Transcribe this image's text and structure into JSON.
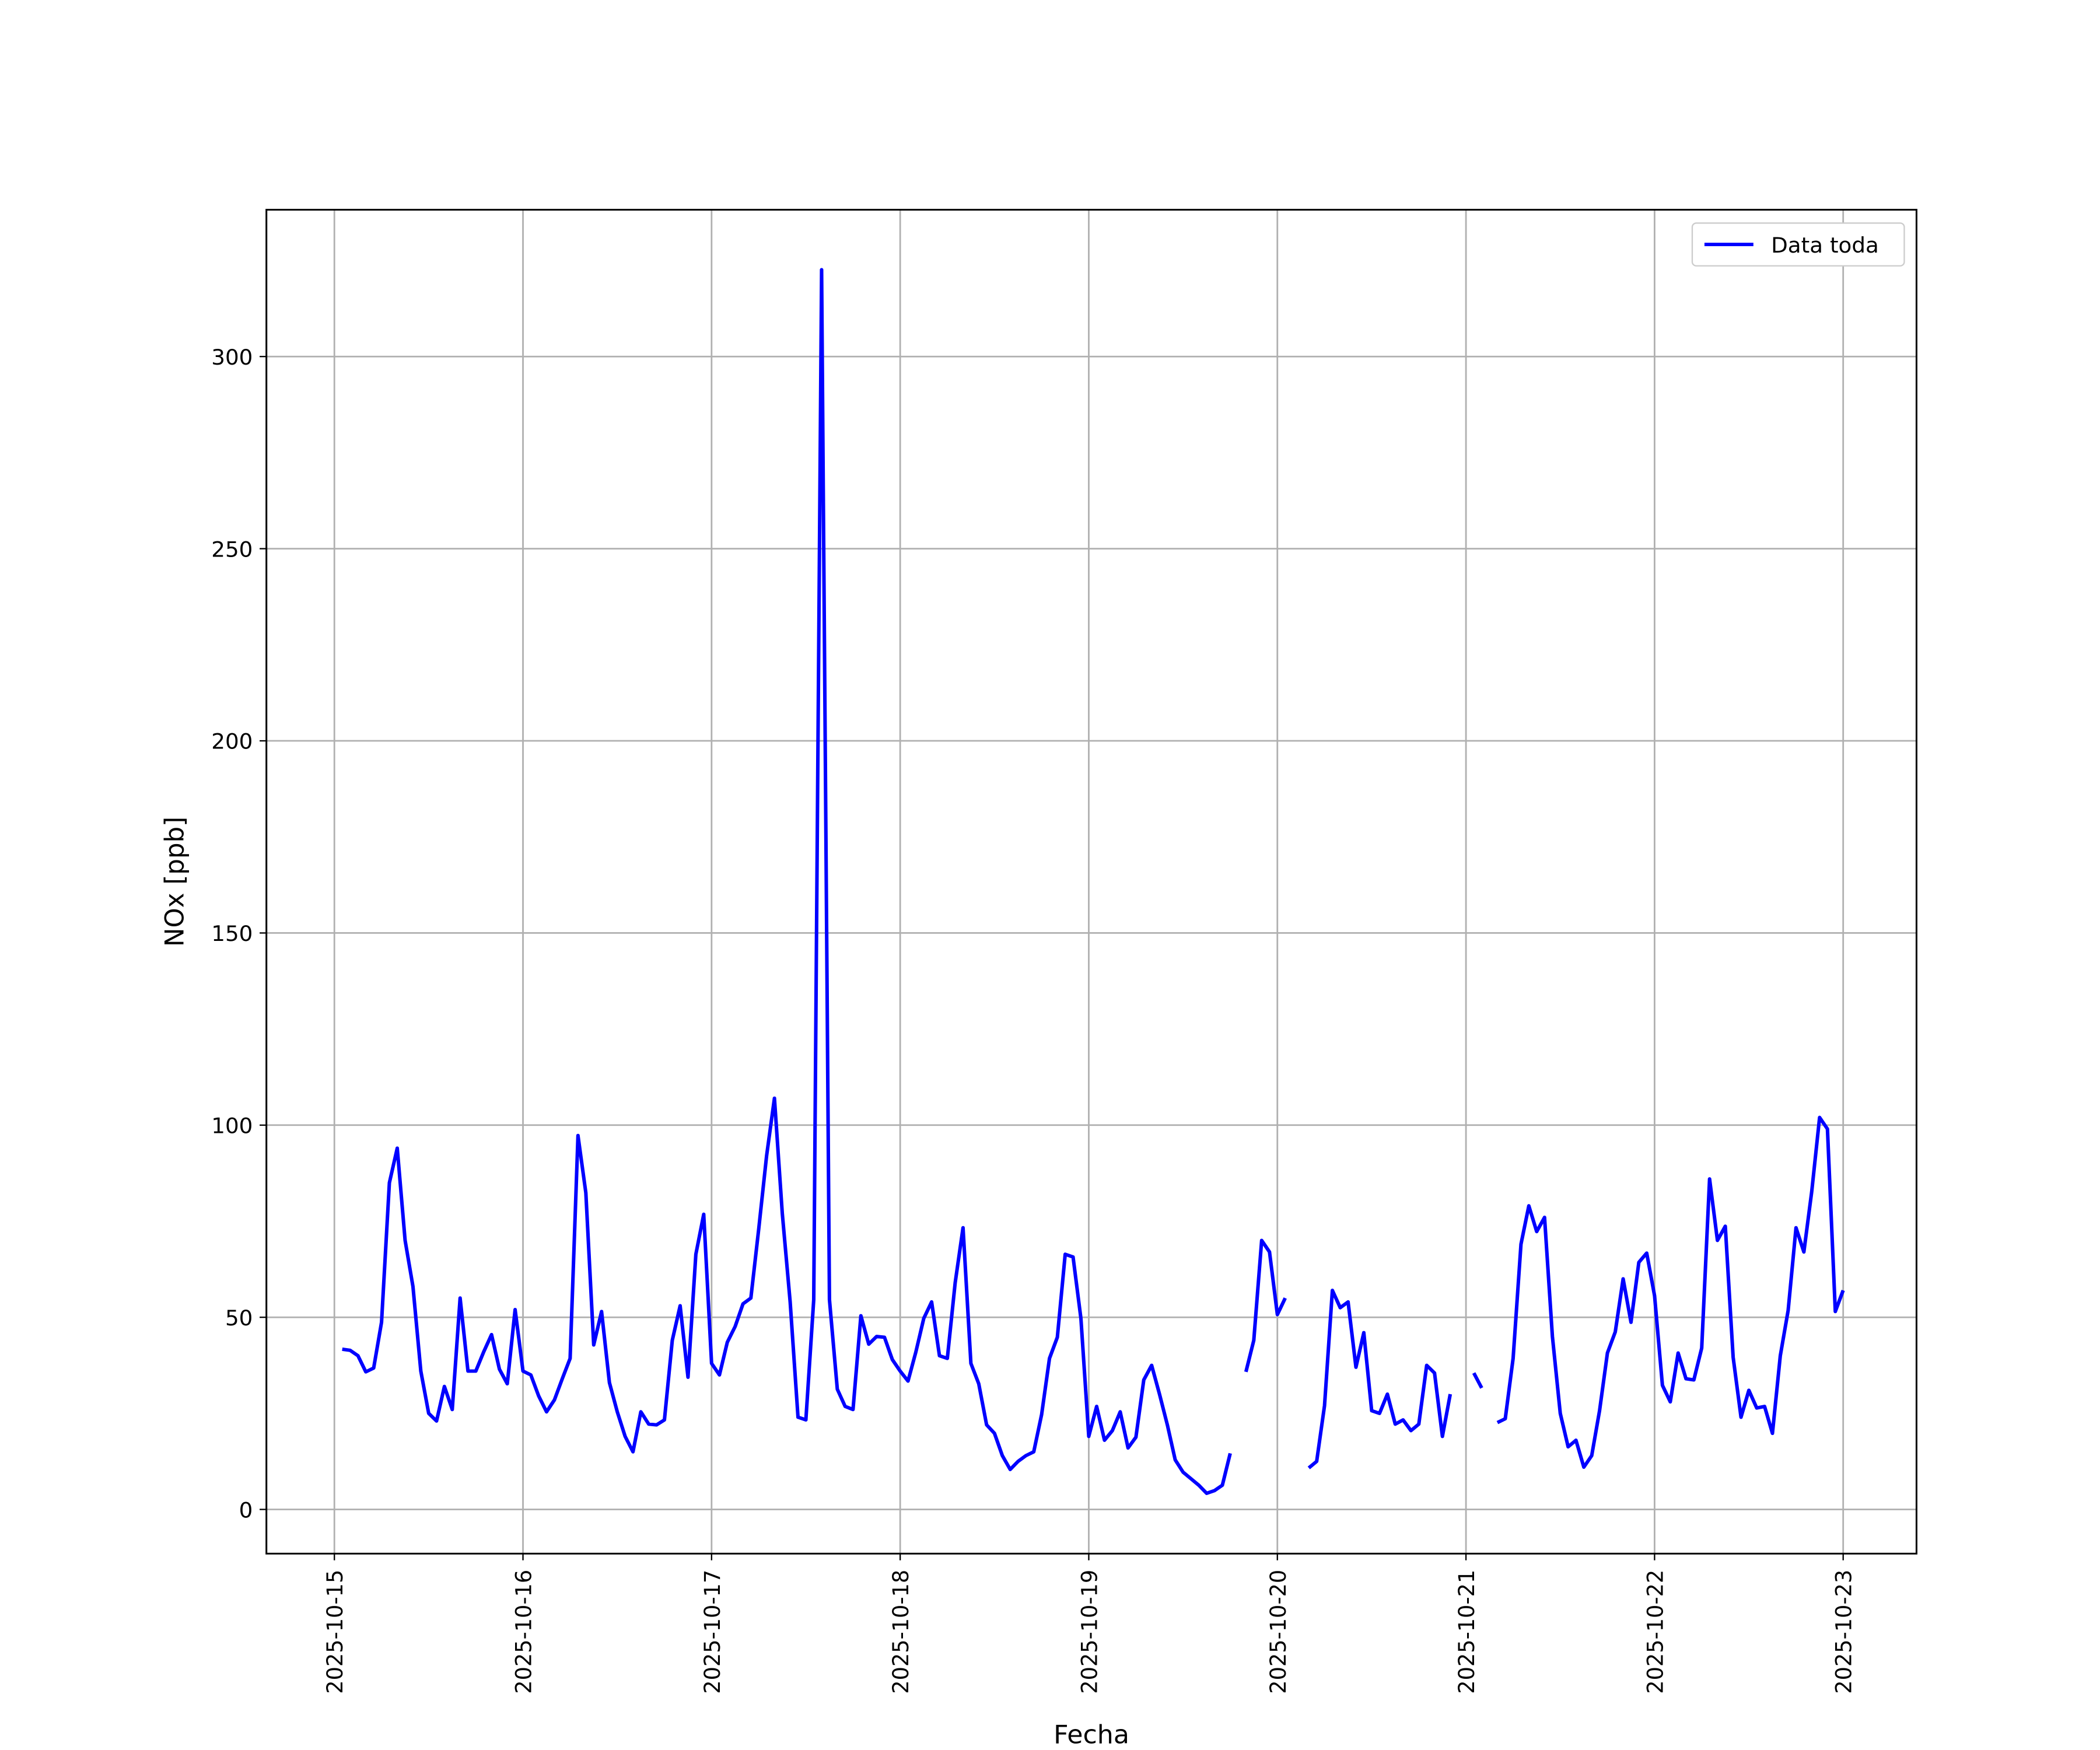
{
  "chart_data": {
    "type": "line",
    "xlabel": "Fecha",
    "ylabel": "NOx [ppb]",
    "x": [
      "2025-10-15T01:00",
      "2025-10-15T02:00",
      "2025-10-15T03:00",
      "2025-10-15T04:00",
      "2025-10-15T05:00",
      "2025-10-15T06:00",
      "2025-10-15T07:00",
      "2025-10-15T08:00",
      "2025-10-15T09:00",
      "2025-10-15T10:00",
      "2025-10-15T11:00",
      "2025-10-15T12:00",
      "2025-10-15T13:00",
      "2025-10-15T14:00",
      "2025-10-15T15:00",
      "2025-10-15T16:00",
      "2025-10-15T17:00",
      "2025-10-15T18:00",
      "2025-10-15T19:00",
      "2025-10-15T20:00",
      "2025-10-15T21:00",
      "2025-10-15T22:00",
      "2025-10-15T23:00",
      "2025-10-16T00:00",
      "2025-10-16T01:00",
      "2025-10-16T02:00",
      "2025-10-16T03:00",
      "2025-10-16T04:00",
      "2025-10-16T05:00",
      "2025-10-16T06:00",
      "2025-10-16T07:00",
      "2025-10-16T08:00",
      "2025-10-16T09:00",
      "2025-10-16T10:00",
      "2025-10-16T11:00",
      "2025-10-16T12:00",
      "2025-10-16T13:00",
      "2025-10-16T14:00",
      "2025-10-16T15:00",
      "2025-10-16T16:00",
      "2025-10-16T17:00",
      "2025-10-16T18:00",
      "2025-10-16T19:00",
      "2025-10-16T20:00",
      "2025-10-16T21:00",
      "2025-10-16T22:00",
      "2025-10-16T23:00",
      "2025-10-17T00:00",
      "2025-10-17T01:00",
      "2025-10-17T02:00",
      "2025-10-17T03:00",
      "2025-10-17T04:00",
      "2025-10-17T05:00",
      "2025-10-17T06:00",
      "2025-10-17T07:00",
      "2025-10-17T08:00",
      "2025-10-17T09:00",
      "2025-10-17T10:00",
      "2025-10-17T11:00",
      "2025-10-17T12:00",
      "2025-10-17T13:00",
      "2025-10-17T14:00",
      "2025-10-17T15:00",
      "2025-10-17T16:00",
      "2025-10-17T17:00",
      "2025-10-17T18:00",
      "2025-10-17T19:00",
      "2025-10-17T20:00",
      "2025-10-17T21:00",
      "2025-10-17T22:00",
      "2025-10-17T23:00",
      "2025-10-18T00:00",
      "2025-10-18T01:00",
      "2025-10-18T02:00",
      "2025-10-18T03:00",
      "2025-10-18T04:00",
      "2025-10-18T05:00",
      "2025-10-18T06:00",
      "2025-10-18T07:00",
      "2025-10-18T08:00",
      "2025-10-18T09:00",
      "2025-10-18T10:00",
      "2025-10-18T11:00",
      "2025-10-18T12:00",
      "2025-10-18T13:00",
      "2025-10-18T14:00",
      "2025-10-18T15:00",
      "2025-10-18T16:00",
      "2025-10-18T17:00",
      "2025-10-18T18:00",
      "2025-10-18T19:00",
      "2025-10-18T20:00",
      "2025-10-18T21:00",
      "2025-10-18T22:00",
      "2025-10-18T23:00",
      "2025-10-19T00:00",
      "2025-10-19T01:00",
      "2025-10-19T02:00",
      "2025-10-19T03:00",
      "2025-10-19T04:00",
      "2025-10-19T05:00",
      "2025-10-19T06:00",
      "2025-10-19T07:00",
      "2025-10-19T08:00",
      "2025-10-19T09:00",
      "2025-10-19T10:00",
      "2025-10-19T11:00",
      "2025-10-19T12:00",
      "2025-10-19T13:00",
      "2025-10-19T14:00",
      "2025-10-19T15:00",
      "2025-10-19T16:00",
      "2025-10-19T17:00",
      "2025-10-19T18:00",
      "2025-10-19T19:00",
      "2025-10-19T20:00",
      "2025-10-19T21:00",
      "2025-10-19T22:00",
      "2025-10-19T23:00",
      "2025-10-20T00:00",
      "2025-10-20T01:00",
      "2025-10-20T02:00",
      "2025-10-20T03:00",
      "2025-10-20T04:00",
      "2025-10-20T05:00",
      "2025-10-20T06:00",
      "2025-10-20T07:00",
      "2025-10-20T08:00",
      "2025-10-20T09:00",
      "2025-10-20T10:00",
      "2025-10-20T11:00",
      "2025-10-20T12:00",
      "2025-10-20T13:00",
      "2025-10-20T14:00",
      "2025-10-20T15:00",
      "2025-10-20T16:00",
      "2025-10-20T17:00",
      "2025-10-20T18:00",
      "2025-10-20T19:00",
      "2025-10-20T20:00",
      "2025-10-20T21:00",
      "2025-10-20T22:00",
      "2025-10-20T23:00",
      "2025-10-21T00:00",
      "2025-10-21T01:00",
      "2025-10-21T02:00",
      "2025-10-21T03:00",
      "2025-10-21T04:00",
      "2025-10-21T05:00",
      "2025-10-21T06:00",
      "2025-10-21T07:00",
      "2025-10-21T08:00",
      "2025-10-21T09:00",
      "2025-10-21T10:00",
      "2025-10-21T11:00",
      "2025-10-21T12:00",
      "2025-10-21T13:00",
      "2025-10-21T14:00",
      "2025-10-21T15:00",
      "2025-10-21T16:00",
      "2025-10-21T17:00",
      "2025-10-21T18:00",
      "2025-10-21T19:00",
      "2025-10-21T20:00",
      "2025-10-21T21:00",
      "2025-10-21T22:00",
      "2025-10-21T23:00",
      "2025-10-22T00:00",
      "2025-10-22T01:00",
      "2025-10-22T02:00",
      "2025-10-22T03:00",
      "2025-10-22T04:00",
      "2025-10-22T05:00",
      "2025-10-22T06:00",
      "2025-10-22T07:00",
      "2025-10-22T08:00",
      "2025-10-22T09:00",
      "2025-10-22T10:00",
      "2025-10-22T11:00",
      "2025-10-22T12:00",
      "2025-10-22T13:00",
      "2025-10-22T14:00",
      "2025-10-22T15:00",
      "2025-10-22T16:00",
      "2025-10-22T17:00",
      "2025-10-22T18:00",
      "2025-10-22T19:00",
      "2025-10-22T20:00",
      "2025-10-22T21:00",
      "2025-10-22T22:00",
      "2025-10-22T23:00",
      "2025-10-23T00:00"
    ],
    "series": [
      {
        "name": "Data toda",
        "color": "#0000ff",
        "values": [
          41.7,
          41.4,
          40,
          35.8,
          36.8,
          48.7,
          85,
          94,
          70,
          58,
          36,
          25,
          23,
          32,
          26,
          55,
          36,
          36,
          41,
          45.5,
          36.5,
          32.7,
          52,
          36,
          35,
          29.5,
          25.4,
          28.5,
          34,
          39.3,
          97.3,
          82.4,
          42.8,
          51.5,
          33,
          25.4,
          19,
          15,
          25.4,
          22.2,
          22,
          23.3,
          44,
          53,
          34.4,
          66.4,
          76.8,
          38,
          35,
          43.5,
          47.6,
          53.5,
          55,
          73,
          92,
          107,
          77,
          54,
          24,
          23.3,
          54.6,
          322.6,
          54.6,
          31.3,
          26.8,
          26,
          50.4,
          43,
          45,
          44.8,
          39,
          36,
          33.4,
          41,
          49.7,
          54,
          40,
          39.3,
          59,
          73.3,
          38,
          32.7,
          22,
          19.8,
          14,
          10.4,
          12.5,
          14,
          15,
          24.7,
          39.3,
          44.8,
          66.4,
          65.7,
          49.7,
          19,
          26.8,
          18,
          20.5,
          25.4,
          16,
          18.8,
          33.7,
          37.5,
          30,
          22,
          12.9,
          9.7,
          8,
          6.3,
          4.2,
          4.9,
          6.3,
          14.6,
          null,
          35.8,
          44,
          70,
          67,
          50.7,
          55,
          null,
          null,
          10.8,
          12.5,
          27,
          57,
          52.5,
          54,
          37,
          46,
          25.7,
          25,
          30,
          22.2,
          23.3,
          20.5,
          22.2,
          37.5,
          35.5,
          19,
          30,
          null,
          null,
          35.5,
          31.6,
          null,
          22.6,
          23.6,
          39.3,
          69,
          79,
          72.3,
          76,
          45,
          25,
          16.3,
          18,
          11,
          14,
          25.7,
          40.7,
          46.2,
          60,
          48.7,
          64.3,
          66.7,
          55.6,
          32.3,
          28,
          40.7,
          34,
          33.7,
          42,
          86,
          70,
          73.7,
          39.6,
          24,
          31,
          26.4,
          26.8,
          19.8,
          40,
          51.8,
          73.3,
          67,
          82.7,
          102,
          99,
          51.5,
          57
        ]
      }
    ],
    "xlim": [
      "2025-10-14T15:21",
      "2025-10-23T09:20"
    ],
    "xticks": [
      "2025-10-15",
      "2025-10-16",
      "2025-10-17",
      "2025-10-18",
      "2025-10-19",
      "2025-10-20",
      "2025-10-21",
      "2025-10-22",
      "2025-10-23"
    ],
    "ylim": [
      -11.5,
      338.2
    ],
    "yticks": [
      0,
      50,
      100,
      150,
      200,
      250,
      300
    ],
    "grid": true,
    "legend": "upper right"
  }
}
